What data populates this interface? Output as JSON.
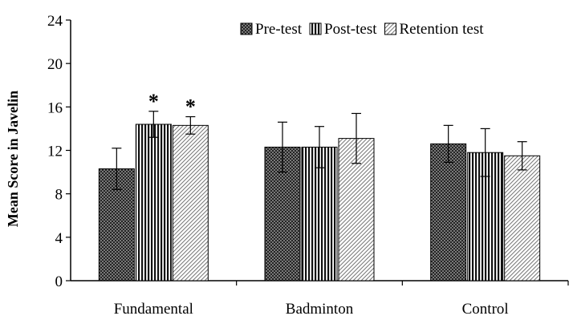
{
  "chart_data": {
    "type": "bar",
    "title": "",
    "xlabel": "",
    "ylabel": "Mean Score in Javelin",
    "ylim": [
      0,
      24
    ],
    "yticks": [
      0,
      4,
      8,
      12,
      16,
      20,
      24
    ],
    "grid": false,
    "legend_position": "top-right",
    "categories": [
      "Fundamental",
      "Badminton",
      "Control"
    ],
    "series": [
      {
        "name": "Pre-test",
        "pattern": "crosshatch",
        "values": [
          10.3,
          12.3,
          12.6
        ],
        "errors": [
          1.9,
          2.3,
          1.7
        ]
      },
      {
        "name": "Post-test",
        "pattern": "vertical-stripes",
        "values": [
          14.4,
          12.3,
          11.8
        ],
        "errors": [
          1.2,
          1.9,
          2.2
        ]
      },
      {
        "name": "Retention test",
        "pattern": "diagonal-stripes",
        "values": [
          14.3,
          13.1,
          11.5
        ],
        "errors": [
          0.8,
          2.3,
          1.3
        ]
      }
    ],
    "annotations": [
      {
        "text": "*",
        "category": "Fundamental",
        "series": "Post-test"
      },
      {
        "text": "*",
        "category": "Fundamental",
        "series": "Retention test"
      }
    ]
  }
}
